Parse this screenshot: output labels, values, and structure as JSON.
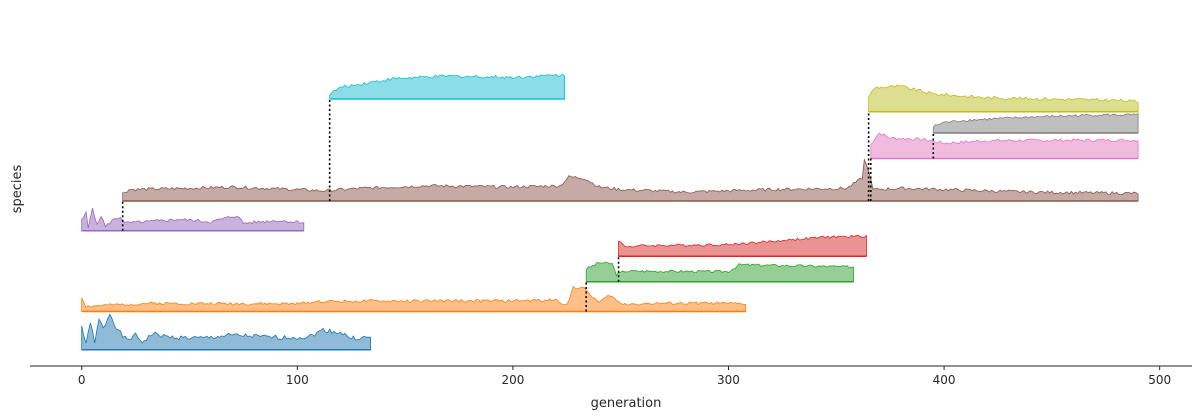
{
  "chart_data": {
    "type": "area",
    "title": "",
    "xlabel": "generation",
    "ylabel": "species",
    "xlim": [
      -24,
      515
    ],
    "x_ticks": [
      0,
      100,
      200,
      300,
      400,
      500
    ],
    "x_tick_labels": [
      "0",
      "100",
      "200",
      "300",
      "400",
      "500"
    ],
    "grid": false,
    "legend": "none",
    "series": [
      {
        "color": "#1f77b4",
        "start": 0,
        "end": 134,
        "baseline": 0.5,
        "height": 0.9,
        "seed": 1,
        "points": [
          [
            0,
            0.62
          ],
          [
            2,
            0.12
          ],
          [
            4,
            0.75
          ],
          [
            6,
            0.15
          ],
          [
            8,
            0.8
          ],
          [
            10,
            0.55
          ],
          [
            13,
            0.95
          ],
          [
            16,
            0.6
          ],
          [
            19,
            0.35
          ],
          [
            21,
            0.25
          ],
          [
            25,
            0.38
          ],
          [
            28,
            0.2
          ],
          [
            33,
            0.42
          ],
          [
            40,
            0.33
          ],
          [
            55,
            0.3
          ],
          [
            70,
            0.38
          ],
          [
            90,
            0.32
          ],
          [
            105,
            0.33
          ],
          [
            112,
            0.52
          ],
          [
            120,
            0.45
          ],
          [
            125,
            0.3
          ],
          [
            134,
            0.32
          ]
        ]
      },
      {
        "color": "#ff7f0e",
        "start": 0,
        "end": 308,
        "baseline": 1.4,
        "height": 0.6,
        "seed": 2,
        "points": [
          [
            0,
            0.55
          ],
          [
            2,
            0.2
          ],
          [
            30,
            0.32
          ],
          [
            100,
            0.3
          ],
          [
            110,
            0.4
          ],
          [
            200,
            0.42
          ],
          [
            220,
            0.45
          ],
          [
            225,
            0.25
          ],
          [
            228,
            0.95
          ],
          [
            233,
            0.9
          ],
          [
            240,
            0.35
          ],
          [
            245,
            0.65
          ],
          [
            250,
            0.3
          ],
          [
            290,
            0.33
          ],
          [
            308,
            0.3
          ]
        ]
      },
      {
        "color": "#2ca02c",
        "start": 234,
        "end": 358,
        "baseline": 2.1,
        "height": 0.5,
        "seed": 3,
        "points": [
          [
            234,
            0.6
          ],
          [
            240,
            0.9
          ],
          [
            246,
            0.85
          ],
          [
            248,
            0.35
          ],
          [
            252,
            0.5
          ],
          [
            300,
            0.48
          ],
          [
            305,
            0.8
          ],
          [
            358,
            0.7
          ]
        ]
      },
      {
        "color": "#d62728",
        "start": 249,
        "end": 364,
        "baseline": 2.7,
        "height": 0.5,
        "seed": 4,
        "points": [
          [
            249,
            0.75
          ],
          [
            252,
            0.45
          ],
          [
            260,
            0.5
          ],
          [
            300,
            0.55
          ],
          [
            320,
            0.7
          ],
          [
            345,
            0.9
          ],
          [
            364,
            0.95
          ]
        ]
      },
      {
        "color": "#9467bd",
        "start": 0,
        "end": 103,
        "baseline": 3.3,
        "height": 0.6,
        "seed": 5,
        "points": [
          [
            0,
            0.4
          ],
          [
            2,
            0.7
          ],
          [
            3,
            0.1
          ],
          [
            5,
            0.95
          ],
          [
            7,
            0.2
          ],
          [
            9,
            0.6
          ],
          [
            11,
            0.15
          ],
          [
            14,
            0.4
          ],
          [
            18,
            0.55
          ],
          [
            20,
            0.3
          ],
          [
            30,
            0.35
          ],
          [
            45,
            0.45
          ],
          [
            60,
            0.35
          ],
          [
            72,
            0.6
          ],
          [
            75,
            0.3
          ],
          [
            90,
            0.4
          ],
          [
            103,
            0.33
          ]
        ]
      },
      {
        "color": "#8c564b",
        "start": 19,
        "end": 490,
        "baseline": 4.0,
        "height": 0.6,
        "seed": 6,
        "points": [
          [
            19,
            0.3
          ],
          [
            22,
            0.45
          ],
          [
            50,
            0.5
          ],
          [
            70,
            0.55
          ],
          [
            100,
            0.45
          ],
          [
            112,
            0.4
          ],
          [
            130,
            0.5
          ],
          [
            160,
            0.6
          ],
          [
            200,
            0.55
          ],
          [
            222,
            0.6
          ],
          [
            226,
            0.95
          ],
          [
            233,
            0.9
          ],
          [
            240,
            0.55
          ],
          [
            250,
            0.45
          ],
          [
            280,
            0.35
          ],
          [
            320,
            0.45
          ],
          [
            355,
            0.5
          ],
          [
            362,
            0.9
          ],
          [
            363,
            1.6
          ],
          [
            365,
            1.2
          ],
          [
            367,
            0.45
          ],
          [
            380,
            0.5
          ],
          [
            400,
            0.45
          ],
          [
            440,
            0.35
          ],
          [
            490,
            0.3
          ]
        ]
      },
      {
        "color": "#e377c2",
        "start": 366,
        "end": 490,
        "baseline": 5.0,
        "height": 0.6,
        "seed": 7,
        "points": [
          [
            366,
            0.55
          ],
          [
            368,
            0.8
          ],
          [
            370,
            1.0
          ],
          [
            375,
            0.8
          ],
          [
            390,
            0.75
          ],
          [
            400,
            0.6
          ],
          [
            420,
            0.7
          ],
          [
            460,
            0.72
          ],
          [
            490,
            0.72
          ]
        ]
      },
      {
        "color": "#7f7f7f",
        "start": 395,
        "end": 490,
        "baseline": 5.6,
        "height": 0.5,
        "seed": 8,
        "points": [
          [
            395,
            0.3
          ],
          [
            400,
            0.5
          ],
          [
            410,
            0.6
          ],
          [
            440,
            0.75
          ],
          [
            470,
            0.85
          ],
          [
            490,
            0.85
          ]
        ]
      },
      {
        "color": "#bcbd22",
        "start": 365,
        "end": 490,
        "baseline": 6.1,
        "height": 0.6,
        "seed": 9,
        "points": [
          [
            365,
            0.6
          ],
          [
            368,
            0.95
          ],
          [
            380,
            1.0
          ],
          [
            395,
            0.7
          ],
          [
            420,
            0.55
          ],
          [
            450,
            0.5
          ],
          [
            480,
            0.45
          ],
          [
            490,
            0.4
          ]
        ]
      },
      {
        "color": "#17becf",
        "start": 115,
        "end": 224,
        "baseline": 6.4,
        "height": 0.6,
        "seed": 10,
        "points": [
          [
            115,
            0.2
          ],
          [
            120,
            0.45
          ],
          [
            130,
            0.6
          ],
          [
            145,
            0.8
          ],
          [
            170,
            0.9
          ],
          [
            200,
            0.85
          ],
          [
            224,
            0.95
          ]
        ]
      }
    ],
    "branches": [
      {
        "x": 19,
        "from": 3.3,
        "to": 4.0
      },
      {
        "x": 115,
        "from": 4.0,
        "to": 6.4
      },
      {
        "x": 234,
        "from": 1.4,
        "to": 2.1
      },
      {
        "x": 249,
        "from": 2.1,
        "to": 2.7
      },
      {
        "x": 365,
        "from": 4.0,
        "to": 6.1
      },
      {
        "x": 366,
        "from": 4.0,
        "to": 5.0
      },
      {
        "x": 395,
        "from": 5.0,
        "to": 5.6
      }
    ]
  }
}
